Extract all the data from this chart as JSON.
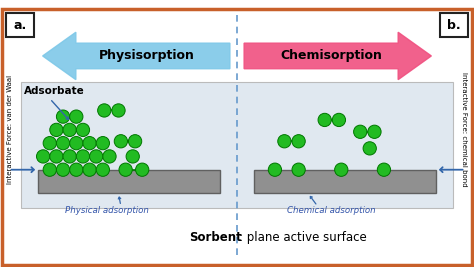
{
  "bg_color": "#ffffff",
  "border_color": "#c8602a",
  "title_bottom_bold": "Sorbent",
  "title_bottom_rest": ": plane active surface",
  "label_a": "a.",
  "label_b": "b.",
  "arrow_left_label": "Physisorption",
  "arrow_right_label": "Chemisorption",
  "arrow_left_color": "#7ec8e8",
  "arrow_right_color": "#f05080",
  "adsorbate_label": "Adsorbate",
  "phys_label": "Physical adsorption",
  "chem_label": "Chemical adsorption",
  "left_side_label": "Interactive Force: van der Waal",
  "right_side_label": "Interactive Force: chemical bond",
  "surface_color": "#909090",
  "surface_edge": "#606060",
  "panel_color": "#e0e8f0",
  "molecule_color": "#22bb22",
  "molecule_edge": "#007700",
  "dashed_color": "#6699cc",
  "arrow_line_color": "#3366aa",
  "label_color": "#3355aa"
}
